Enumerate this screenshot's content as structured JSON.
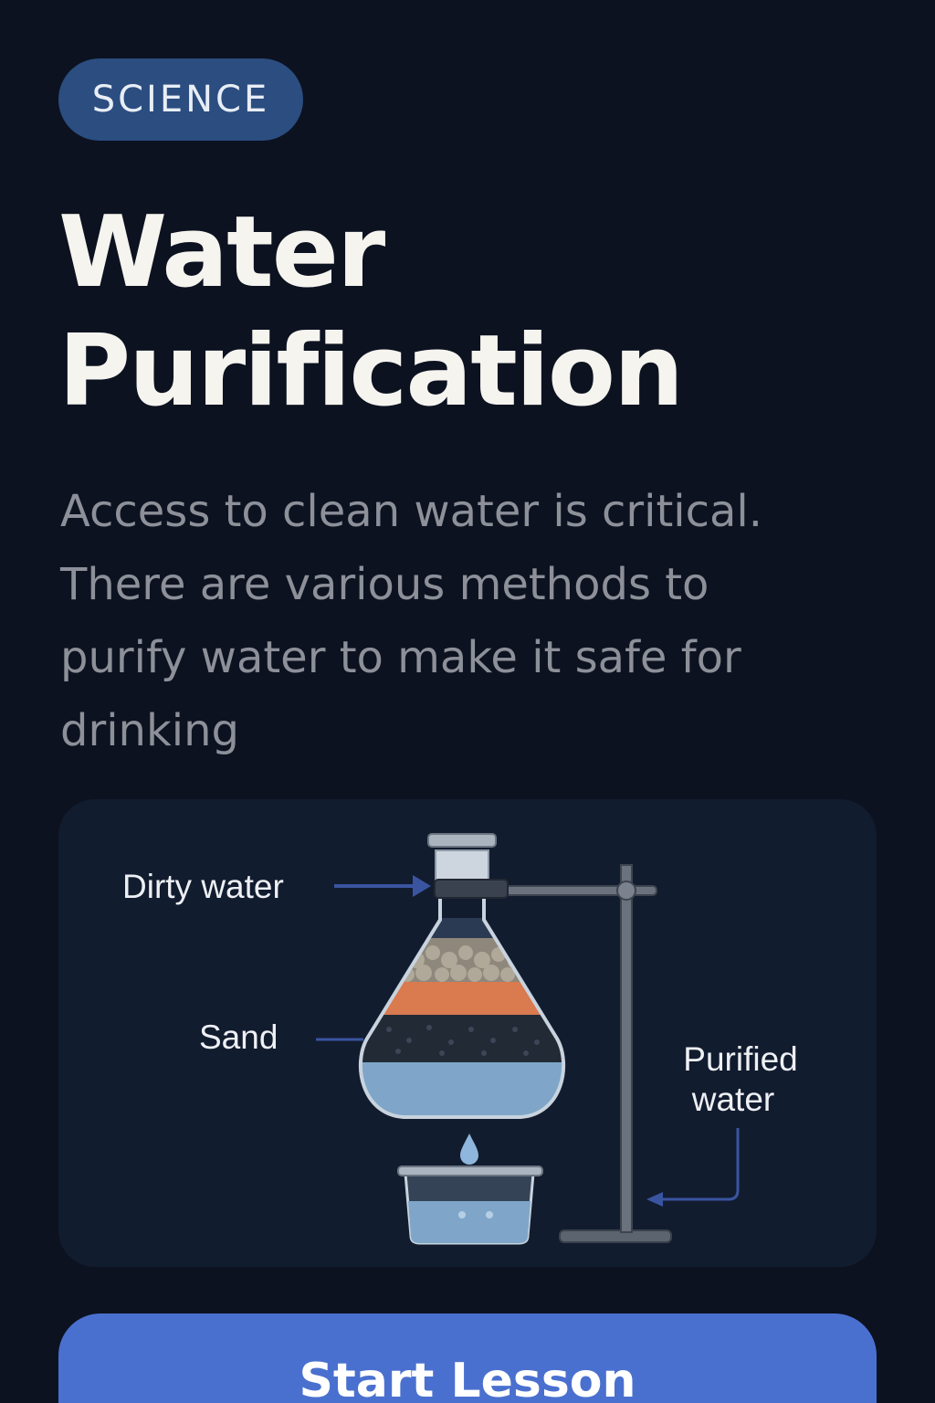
{
  "badge": {
    "label": "SCIENCE"
  },
  "title": {
    "line1": "Water",
    "line2": "Purification"
  },
  "description": {
    "lines": [
      "Access to clean water is critical.",
      "There are various methods to",
      "purify water to make it safe for",
      "drinking"
    ]
  },
  "diagram": {
    "labels": {
      "dirty_water": "Dirty water",
      "sand": "Sand",
      "purified_line1": "Purified",
      "purified_line2": "water"
    }
  },
  "cta": {
    "label": "Start Lesson"
  },
  "colors": {
    "background": "#0c1220",
    "badge": "#2b4d80",
    "card": "#121c2f",
    "accent": "#4a70cf",
    "sand_layer": "#d97a4f",
    "water": "#7fa6c8"
  }
}
